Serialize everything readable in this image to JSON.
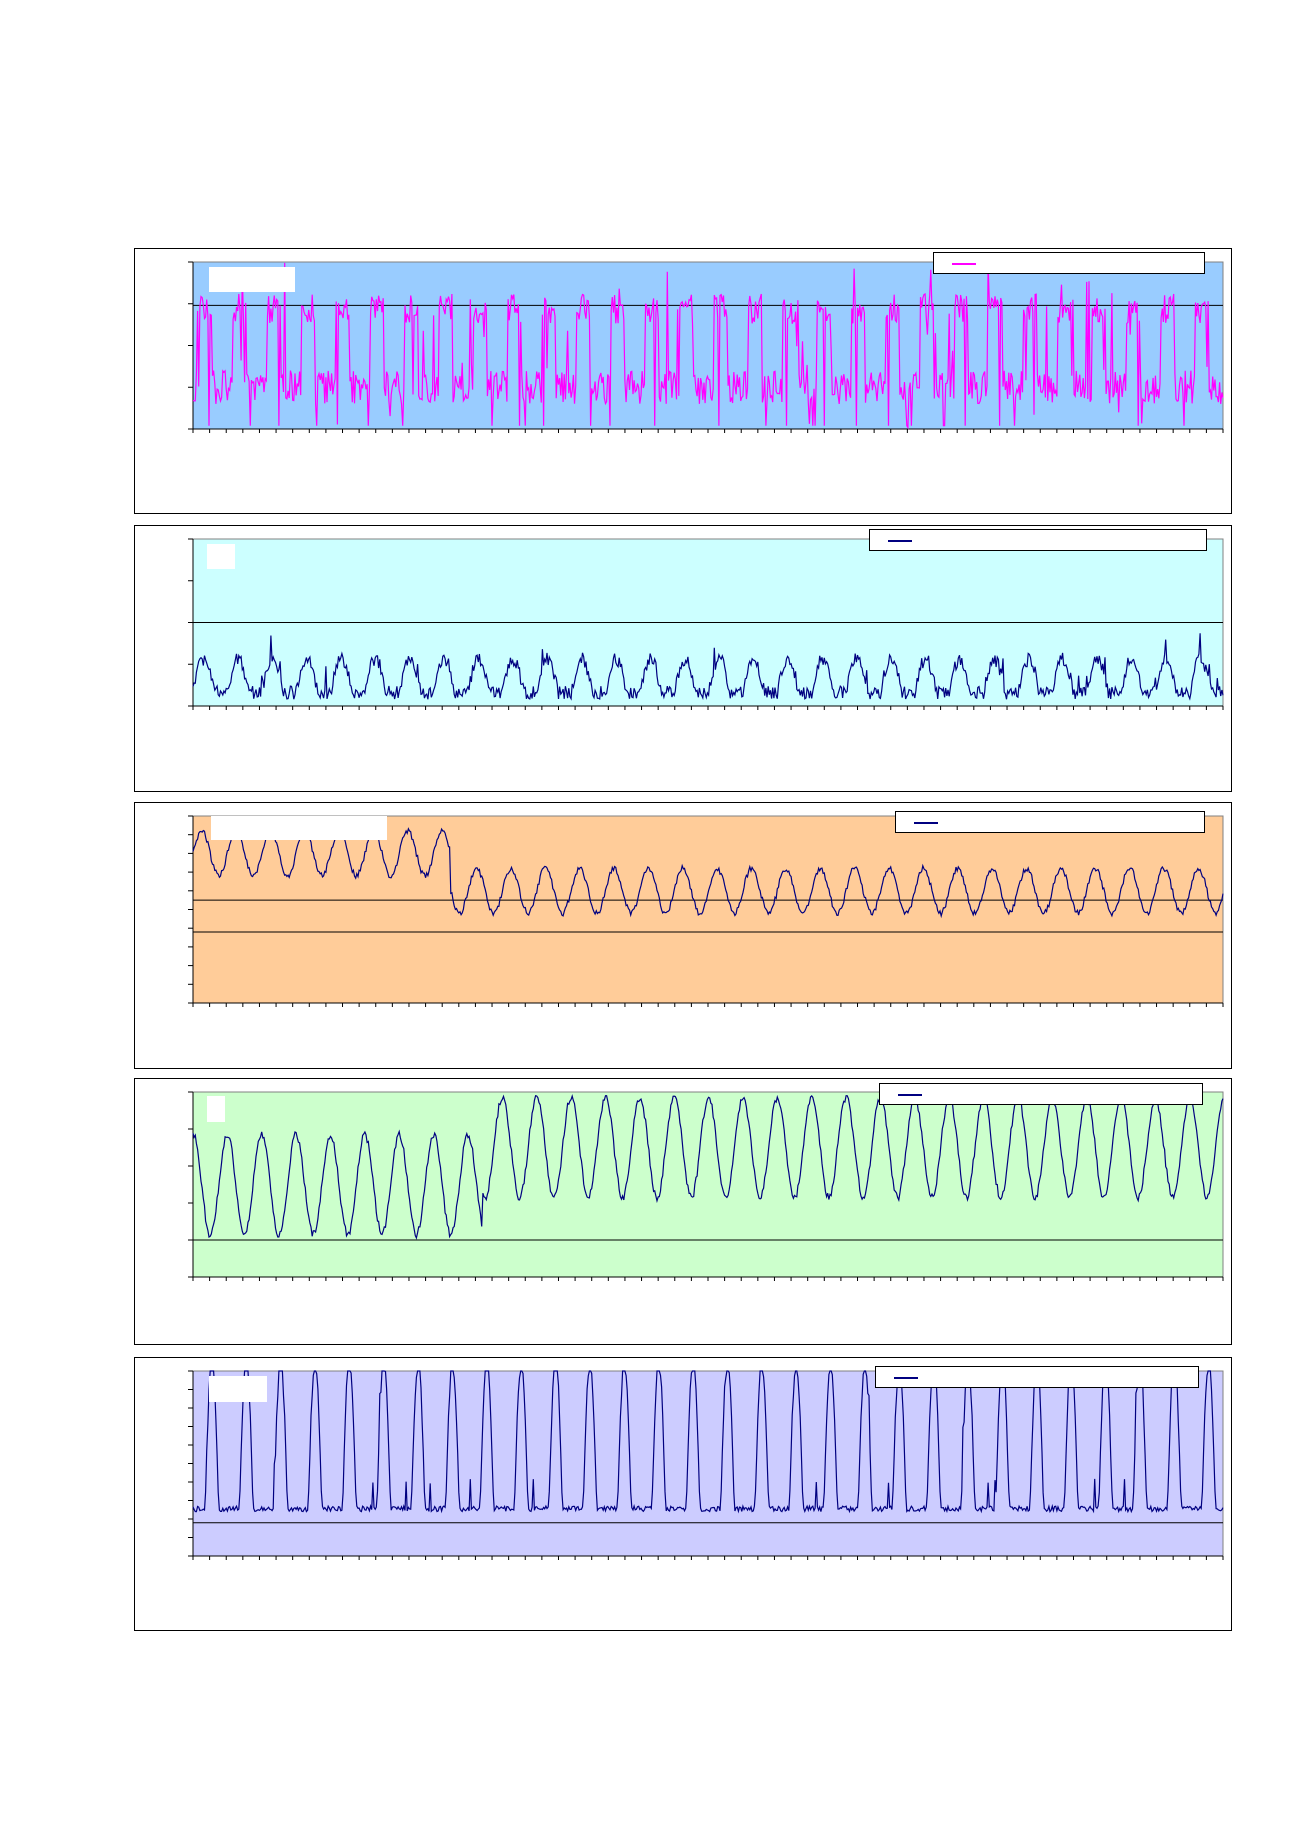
{
  "page": {
    "title": ""
  },
  "chart_data": [
    {
      "type": "line",
      "id": "c1",
      "label": "",
      "legend": "",
      "bg": "#99ccff",
      "line": "#ff00ff",
      "refline": 0.74,
      "ticks_y": [
        0,
        0.25,
        0.5,
        0.75,
        1.0
      ]
    },
    {
      "type": "line",
      "id": "c2",
      "label": "",
      "legend": "",
      "bg": "#ccffff",
      "line": "#000080",
      "refline": 0.5,
      "ticks_y": [
        0,
        0.25,
        0.5,
        0.75,
        1.0
      ]
    },
    {
      "type": "line",
      "id": "c3",
      "label": "",
      "legend": "",
      "bg": "#ffcc99",
      "line": "#000080",
      "refline": 0.55,
      "refline2": 0.38,
      "ticks_y": [
        0,
        0.1,
        0.2,
        0.3,
        0.4,
        0.5,
        0.6,
        0.7,
        0.8,
        0.9,
        1.0
      ]
    },
    {
      "type": "line",
      "id": "c4",
      "label": "",
      "legend": "",
      "bg": "#ccffcc",
      "line": "#000080",
      "refline": 0.2,
      "ticks_y": [
        0,
        0.2,
        0.4,
        0.6,
        0.8,
        1.0
      ]
    },
    {
      "type": "line",
      "id": "c5",
      "label": "",
      "legend": "",
      "bg": "#ccccff",
      "line": "#000080",
      "refline": 0.18,
      "ticks_y": [
        0,
        0.1,
        0.2,
        0.3,
        0.4,
        0.5,
        0.6,
        0.7,
        0.8,
        0.9,
        1.0
      ]
    }
  ]
}
